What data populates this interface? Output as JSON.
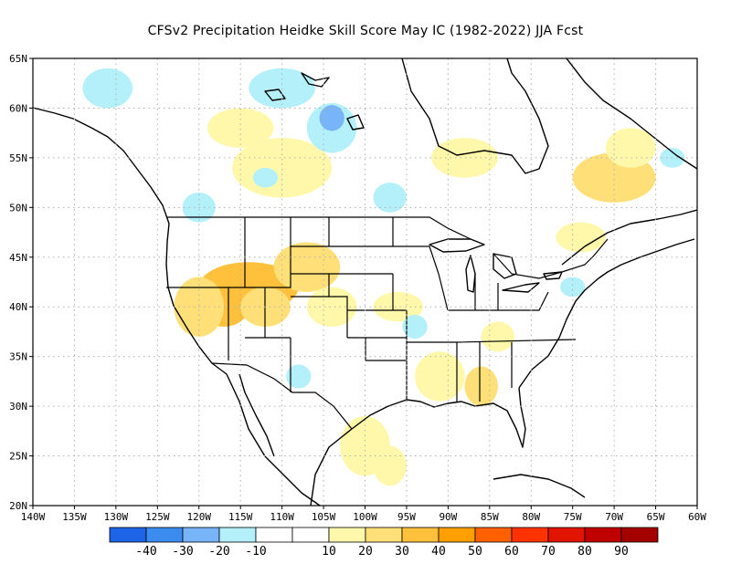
{
  "title": "CFSv2  Precipitation Heidke Skill Score May IC (1982-2022) JJA Fcst",
  "map": {
    "lon_range": [
      -140,
      -60
    ],
    "lat_range": [
      20,
      65
    ],
    "grid": true,
    "x_tick_labels": [
      "140W",
      "135W",
      "130W",
      "125W",
      "120W",
      "115W",
      "110W",
      "105W",
      "100W",
      "95W",
      "90W",
      "85W",
      "80W",
      "75W",
      "70W",
      "65W",
      "60W"
    ],
    "y_tick_labels": [
      "20N",
      "25N",
      "30N",
      "35N",
      "40N",
      "45N",
      "50N",
      "55N",
      "60N",
      "65N"
    ]
  },
  "colorbar": {
    "colors": [
      "#1e64e6",
      "#3c8cf0",
      "#78b4f8",
      "#b4f0fa",
      "#ffffff",
      "#ffffff",
      "#fff8aa",
      "#ffe078",
      "#ffc03c",
      "#ffa000",
      "#ff6000",
      "#ff3200",
      "#e11400",
      "#c00000",
      "#a50000"
    ],
    "labels": [
      "-40",
      "-30",
      "-20",
      "-10",
      "10",
      "20",
      "30",
      "40",
      "50",
      "60",
      "70",
      "80",
      "90"
    ]
  },
  "anomaly_patches": [
    {
      "lon": -114,
      "lat": 42,
      "category": "orange",
      "color": "#ffc03c",
      "name": "great-basin-high-skill"
    },
    {
      "lon": -107,
      "lat": 44,
      "category": "yellow",
      "color": "#ffe078",
      "name": "wyoming-skill"
    },
    {
      "lon": -120,
      "lat": 40,
      "category": "yellow",
      "color": "#ffe078",
      "name": "california-skill"
    },
    {
      "lon": -91,
      "lat": 33,
      "category": "yellow",
      "color": "#fff8aa",
      "name": "gulf-skill"
    },
    {
      "lon": -104,
      "lat": 58,
      "category": "blue",
      "color": "#78b4f8",
      "name": "canada-negative"
    },
    {
      "lon": -70,
      "lat": 53,
      "category": "yellow",
      "color": "#ffe078",
      "name": "labrador-skill"
    }
  ]
}
